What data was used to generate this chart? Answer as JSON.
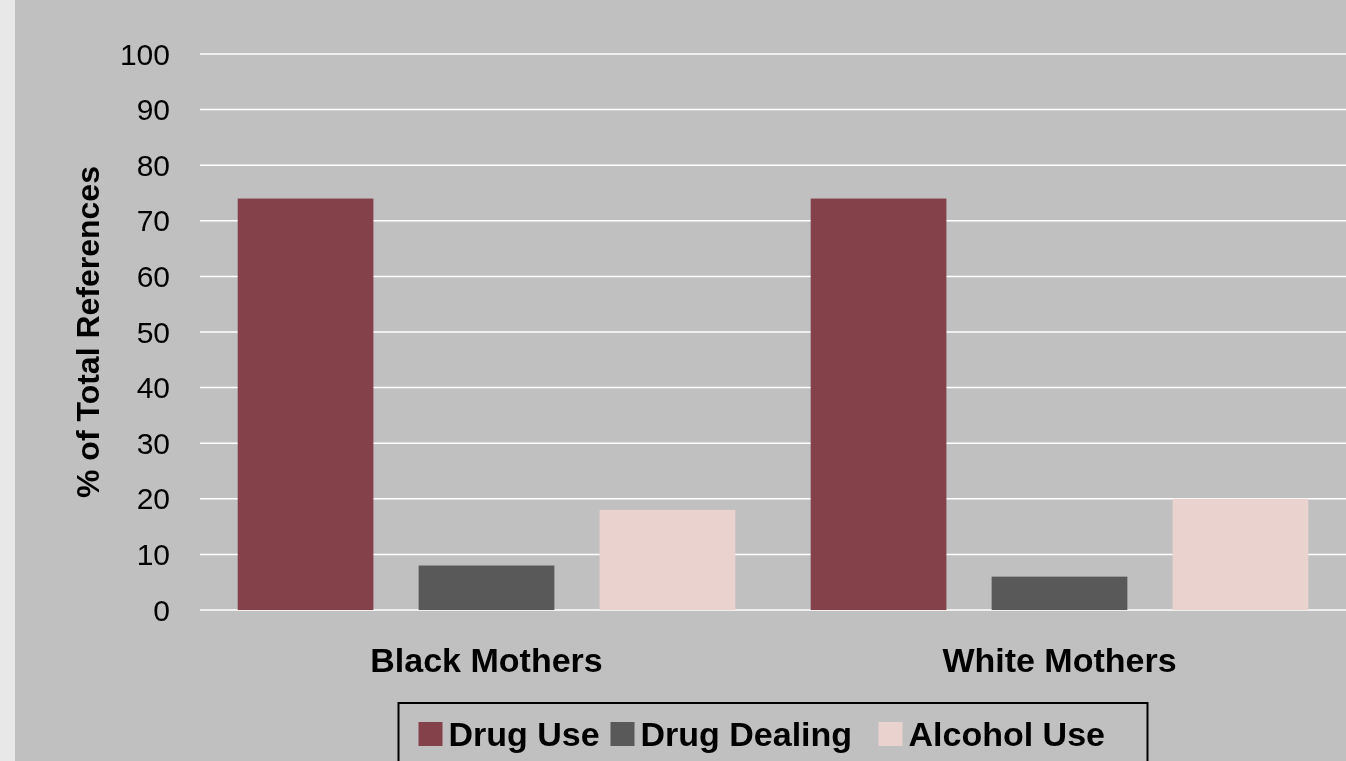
{
  "chart_data": {
    "type": "bar",
    "ylabel": "% of Total References",
    "categories": [
      "Black Mothers",
      "White Mothers"
    ],
    "series": [
      {
        "name": "Drug Use",
        "color": "#84414a",
        "values": [
          74,
          74
        ]
      },
      {
        "name": "Drug Dealing",
        "color": "#595959",
        "values": [
          8,
          6
        ]
      },
      {
        "name": "Alcohol Use",
        "color": "#ead3ce",
        "values": [
          18,
          20
        ]
      }
    ],
    "ylim": [
      0,
      100
    ],
    "yticks": [
      0,
      10,
      20,
      30,
      40,
      50,
      60,
      70,
      80,
      90,
      100
    ],
    "grid": "y",
    "legend": "bottom"
  }
}
